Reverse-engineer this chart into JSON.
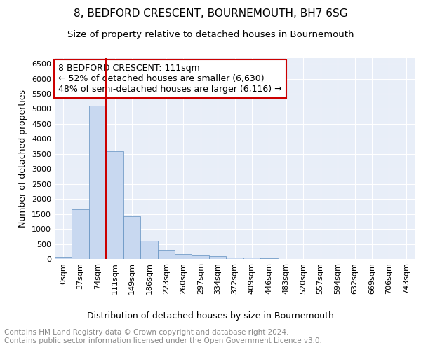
{
  "title": "8, BEDFORD CRESCENT, BOURNEMOUTH, BH7 6SG",
  "subtitle": "Size of property relative to detached houses in Bournemouth",
  "xlabel": "Distribution of detached houses by size in Bournemouth",
  "ylabel": "Number of detached properties",
  "bar_color": "#c8d8f0",
  "bar_edge_color": "#6090c0",
  "background_color": "#e8eef8",
  "grid_color": "#ffffff",
  "annotation_box_color": "#cc0000",
  "vline_color": "#cc0000",
  "annotation_line1": "8 BEDFORD CRESCENT: 111sqm",
  "annotation_line2": "← 52% of detached houses are smaller (6,630)",
  "annotation_line3": "48% of semi-detached houses are larger (6,116) →",
  "categories": [
    "0sqm",
    "37sqm",
    "74sqm",
    "111sqm",
    "149sqm",
    "186sqm",
    "223sqm",
    "260sqm",
    "297sqm",
    "334sqm",
    "372sqm",
    "409sqm",
    "446sqm",
    "483sqm",
    "520sqm",
    "557sqm",
    "594sqm",
    "632sqm",
    "669sqm",
    "706sqm",
    "743sqm"
  ],
  "values": [
    75,
    1650,
    5100,
    3600,
    1420,
    610,
    305,
    155,
    120,
    90,
    50,
    45,
    30,
    5,
    5,
    0,
    0,
    0,
    0,
    0,
    0
  ],
  "ylim": [
    0,
    6700
  ],
  "yticks": [
    0,
    500,
    1000,
    1500,
    2000,
    2500,
    3000,
    3500,
    4000,
    4500,
    5000,
    5500,
    6000,
    6500
  ],
  "footer": "Contains HM Land Registry data © Crown copyright and database right 2024.\nContains public sector information licensed under the Open Government Licence v3.0.",
  "footer_color": "#888888",
  "title_fontsize": 11,
  "subtitle_fontsize": 9.5,
  "axis_label_fontsize": 9,
  "tick_fontsize": 8,
  "annotation_fontsize": 9,
  "footer_fontsize": 7.5
}
